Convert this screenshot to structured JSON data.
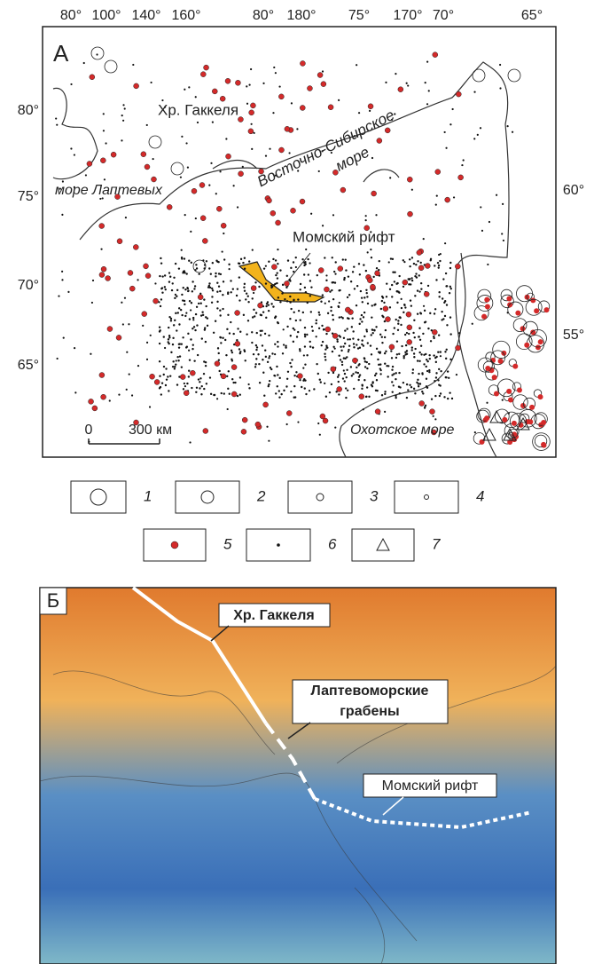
{
  "panel_a": {
    "label": "А",
    "top_labels": [
      "80°",
      "100°",
      "140°",
      "160°",
      "80°",
      "180°",
      "75°",
      "170°",
      "70°",
      "65°"
    ],
    "left_labels": [
      "80°",
      "75°",
      "70°",
      "65°"
    ],
    "right_labels": [
      "60°",
      "55°"
    ],
    "annotations": {
      "gakkel": "Хр. Гаккеля",
      "east_siberian": [
        "Восточно-Сибирское",
        "море"
      ],
      "laptev": "море Лаптевых",
      "momsky": "Момский рифт",
      "okhotsk": "Охотское море"
    },
    "scale": {
      "zero": "0",
      "distance": "300 км"
    }
  },
  "legend": [
    "1",
    "2",
    "3",
    "4",
    "5",
    "6",
    "7"
  ],
  "panel_b": {
    "label": "Б",
    "gakkel": "Хр. Гаккеля",
    "laptev_grabens": [
      "Лаптевоморские",
      "грабены"
    ],
    "momsky": "Момский рифт"
  }
}
